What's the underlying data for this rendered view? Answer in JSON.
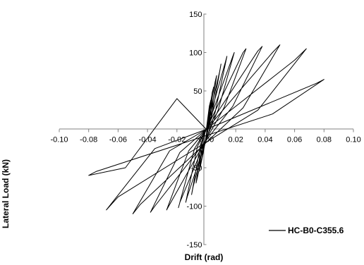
{
  "chart_data": {
    "type": "line",
    "title": "",
    "xlabel": "Drift (rad)",
    "ylabel": "Lateral Load (kN)",
    "xlim": [
      -0.1,
      0.1
    ],
    "ylim": [
      -150,
      150
    ],
    "xticks": [
      "-0.10",
      "-0.08",
      "-0.06",
      "-0.04",
      "-0.02",
      "0.00",
      "0.02",
      "0.04",
      "0.06",
      "0.08",
      "0.10"
    ],
    "yticks": [
      "150",
      "100",
      "50",
      "-50",
      "-100",
      "-150"
    ],
    "ytick_values": [
      150,
      100,
      50,
      -50,
      -100,
      -150
    ],
    "grid": false,
    "legend_position": "bottom-right",
    "series": [
      {
        "name": "HC-B0-C355.6",
        "color": "#000000",
        "x": [
          0,
          0.002,
          0.003,
          0.001,
          -0.002,
          -0.003,
          -0.001,
          0,
          0.004,
          0.005,
          0.002,
          -0.004,
          -0.005,
          -0.002,
          0,
          0.006,
          0.007,
          0.003,
          -0.006,
          -0.007,
          -0.003,
          0,
          0.009,
          0.01,
          0.004,
          -0.009,
          -0.01,
          -0.004,
          0,
          0.013,
          0.014,
          0.006,
          -0.013,
          -0.014,
          -0.006,
          0,
          0.018,
          0.019,
          0.008,
          -0.018,
          -0.019,
          -0.008,
          0,
          0.025,
          0.027,
          0.012,
          -0.025,
          -0.027,
          -0.012,
          0,
          0.035,
          0.038,
          0.018,
          -0.035,
          -0.038,
          -0.018,
          0,
          0.045,
          0.05,
          0.025,
          -0.045,
          -0.05,
          -0.025,
          0,
          0.06,
          0.068,
          0.035,
          -0.06,
          -0.068,
          -0.035,
          0,
          0.075,
          0.08,
          0.045,
          -0.075,
          -0.08,
          -0.055,
          -0.02,
          0.0
        ],
        "y": [
          0,
          30,
          38,
          5,
          -30,
          -38,
          -5,
          0,
          48,
          55,
          10,
          -48,
          -55,
          -10,
          0,
          62,
          70,
          15,
          -62,
          -70,
          -15,
          0,
          75,
          85,
          20,
          -75,
          -85,
          -20,
          0,
          88,
          95,
          22,
          -88,
          -95,
          -22,
          0,
          95,
          100,
          25,
          -95,
          -102,
          -25,
          0,
          100,
          105,
          28,
          -98,
          -105,
          -28,
          0,
          102,
          108,
          30,
          -100,
          -108,
          -30,
          0,
          100,
          110,
          28,
          -98,
          -110,
          -28,
          0,
          90,
          105,
          25,
          -88,
          -105,
          -25,
          0,
          60,
          65,
          20,
          -55,
          -60,
          -50,
          40,
          0
        ]
      }
    ]
  }
}
